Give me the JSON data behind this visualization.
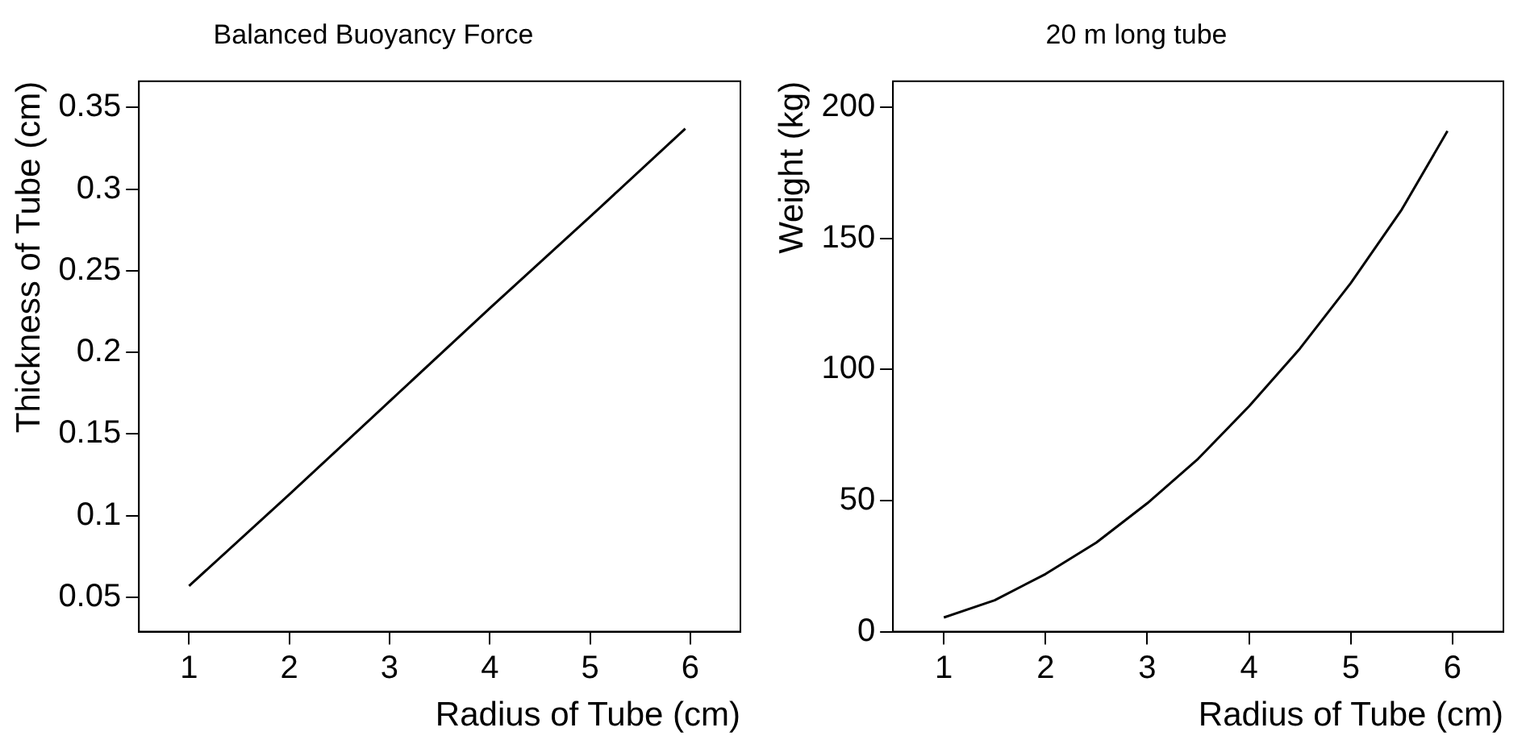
{
  "chart_data": [
    {
      "type": "line",
      "title": "Balanced Buoyancy Force",
      "xlabel": "Radius of Tube (cm)",
      "ylabel": "Thickness of Tube (cm)",
      "x": [
        1,
        2,
        3,
        4,
        5,
        5.95
      ],
      "series": [
        {
          "color": "#000000",
          "values": [
            0.057,
            0.113,
            0.17,
            0.227,
            0.283,
            0.337
          ]
        }
      ],
      "xlim": [
        0.5,
        6.5
      ],
      "xticks": [
        1,
        2,
        3,
        4,
        5,
        6
      ],
      "ylim": [
        0.029,
        0.366
      ],
      "yticks": [
        0.05,
        0.1,
        0.15,
        0.2,
        0.25,
        0.3,
        0.35
      ],
      "grid": false,
      "legend": false,
      "marker": "none",
      "line_style": "solid"
    },
    {
      "type": "line",
      "title": "20 m long tube",
      "xlabel": "Radius of Tube (cm)",
      "ylabel": "Weight (kg)",
      "x": [
        1,
        1.5,
        2,
        2.5,
        3,
        3.5,
        4,
        4.5,
        5,
        5.5,
        5.95
      ],
      "series": [
        {
          "color": "#000000",
          "values": [
            5.4,
            12,
            22,
            34,
            49,
            66,
            86,
            108,
            133,
            161,
            191
          ]
        }
      ],
      "xlim": [
        0.5,
        6.5
      ],
      "xticks": [
        1,
        2,
        3,
        4,
        5,
        6
      ],
      "ylim": [
        0,
        210
      ],
      "yticks": [
        0,
        50,
        100,
        150,
        200
      ],
      "grid": false,
      "legend": false,
      "marker": "none",
      "line_style": "solid"
    }
  ]
}
